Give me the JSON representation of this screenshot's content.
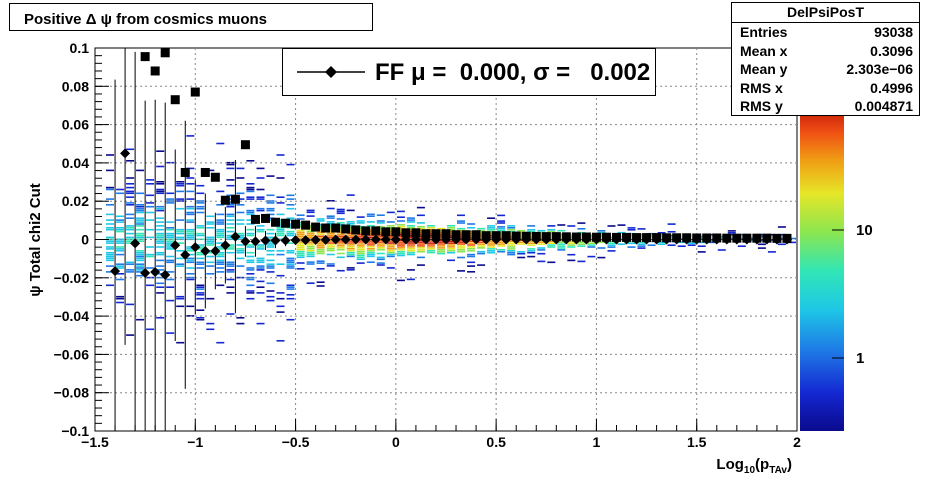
{
  "chart_data": {
    "type": "scatter",
    "title": "Positive Δ ψ from cosmics muons",
    "xlabel_main": "Log",
    "xlabel_sub": "10",
    "xlabel_paren": "(p",
    "xlabel_psub": "TAv",
    "xlabel_close": ")",
    "ylabel": "ψ  Total chi2 Cut",
    "xlim": [
      -1.5,
      2
    ],
    "ylim": [
      -0.1,
      0.1
    ],
    "xticks": [
      "−1.5",
      "−1",
      "−0.5",
      "0",
      "0.5",
      "1",
      "1.5",
      "2"
    ],
    "xtick_values": [
      -1.5,
      -1,
      -0.5,
      0,
      0.5,
      1,
      1.5,
      2
    ],
    "yticks": [
      "−0.1",
      "−0.08",
      "−0.06",
      "−0.04",
      "−0.02",
      "0",
      "0.02",
      "0.04",
      "0.06",
      "0.08",
      "0.1"
    ],
    "ytick_values": [
      -0.1,
      -0.08,
      -0.06,
      -0.04,
      -0.02,
      0,
      0.02,
      0.04,
      0.06,
      0.08,
      0.1
    ],
    "grid": true,
    "colorbar_ticks": [
      "1",
      "10"
    ],
    "legend": {
      "label": "FF μ =  0.000, σ =   0.002"
    },
    "stats": {
      "title": "DelPsiPosT",
      "rows": [
        {
          "key": "Entries",
          "value": "93038"
        },
        {
          "key": "Mean x",
          "value": "0.3096"
        },
        {
          "key": "Mean y",
          "value": "2.303e−06"
        },
        {
          "key": "RMS x",
          "value": "0.4996"
        },
        {
          "key": "RMS y",
          "value": "0.004871"
        }
      ]
    },
    "sigma_points": [
      {
        "x": -1.25,
        "y": 0.0955
      },
      {
        "x": -1.2,
        "y": 0.088
      },
      {
        "x": -1.15,
        "y": 0.0975
      },
      {
        "x": -1.1,
        "y": 0.073
      },
      {
        "x": -1.05,
        "y": 0.035
      },
      {
        "x": -1.0,
        "y": 0.077
      },
      {
        "x": -0.95,
        "y": 0.035
      },
      {
        "x": -0.9,
        "y": 0.0325
      },
      {
        "x": -0.85,
        "y": 0.0205
      },
      {
        "x": -0.8,
        "y": 0.021
      },
      {
        "x": -0.75,
        "y": 0.0495
      },
      {
        "x": -0.7,
        "y": 0.0105
      },
      {
        "x": -0.65,
        "y": 0.011
      },
      {
        "x": -0.6,
        "y": 0.009
      },
      {
        "x": -0.55,
        "y": 0.0085
      },
      {
        "x": -0.5,
        "y": 0.008
      },
      {
        "x": -0.45,
        "y": 0.0075
      },
      {
        "x": -0.4,
        "y": 0.0065
      },
      {
        "x": -0.35,
        "y": 0.006
      },
      {
        "x": -0.3,
        "y": 0.006
      },
      {
        "x": -0.25,
        "y": 0.0055
      },
      {
        "x": -0.2,
        "y": 0.005
      },
      {
        "x": -0.15,
        "y": 0.0045
      },
      {
        "x": -0.1,
        "y": 0.0045
      },
      {
        "x": -0.05,
        "y": 0.004
      },
      {
        "x": 0.0,
        "y": 0.004
      },
      {
        "x": 0.05,
        "y": 0.0035
      },
      {
        "x": 0.1,
        "y": 0.0035
      },
      {
        "x": 0.15,
        "y": 0.003
      },
      {
        "x": 0.2,
        "y": 0.003
      },
      {
        "x": 0.25,
        "y": 0.003
      },
      {
        "x": 0.3,
        "y": 0.0025
      },
      {
        "x": 0.35,
        "y": 0.0025
      },
      {
        "x": 0.4,
        "y": 0.0025
      },
      {
        "x": 0.45,
        "y": 0.002
      },
      {
        "x": 0.5,
        "y": 0.002
      },
      {
        "x": 0.55,
        "y": 0.002
      },
      {
        "x": 0.6,
        "y": 0.0018
      },
      {
        "x": 0.65,
        "y": 0.0017
      },
      {
        "x": 0.7,
        "y": 0.0016
      },
      {
        "x": 0.75,
        "y": 0.0015
      },
      {
        "x": 0.8,
        "y": 0.0015
      },
      {
        "x": 0.85,
        "y": 0.0014
      },
      {
        "x": 0.9,
        "y": 0.0013
      },
      {
        "x": 0.95,
        "y": 0.0013
      },
      {
        "x": 1.0,
        "y": 0.0012
      },
      {
        "x": 1.05,
        "y": 0.0012
      },
      {
        "x": 1.1,
        "y": 0.0011
      },
      {
        "x": 1.15,
        "y": 0.0011
      },
      {
        "x": 1.2,
        "y": 0.001
      },
      {
        "x": 1.25,
        "y": 0.001
      },
      {
        "x": 1.3,
        "y": 0.001
      },
      {
        "x": 1.35,
        "y": 0.0009
      },
      {
        "x": 1.4,
        "y": 0.0009
      },
      {
        "x": 1.45,
        "y": 0.0009
      },
      {
        "x": 1.5,
        "y": 0.0008
      },
      {
        "x": 1.55,
        "y": 0.0008
      },
      {
        "x": 1.6,
        "y": 0.0008
      },
      {
        "x": 1.65,
        "y": 0.0007
      },
      {
        "x": 1.7,
        "y": 0.0007
      },
      {
        "x": 1.75,
        "y": 0.0007
      },
      {
        "x": 1.8,
        "y": 0.0007
      },
      {
        "x": 1.85,
        "y": 0.0007
      },
      {
        "x": 1.9,
        "y": 0.0006
      },
      {
        "x": 1.95,
        "y": 0.0006
      }
    ],
    "mean_points": [
      {
        "x": -1.4,
        "y": -0.0165,
        "err": 0.1
      },
      {
        "x": -1.35,
        "y": 0.045,
        "err": 0.1
      },
      {
        "x": -1.3,
        "y": -0.002,
        "err": 0.1
      },
      {
        "x": -1.25,
        "y": -0.0175,
        "err": 0.09
      },
      {
        "x": -1.2,
        "y": -0.017,
        "err": 0.09
      },
      {
        "x": -1.15,
        "y": -0.0185,
        "err": 0.09
      },
      {
        "x": -1.1,
        "y": -0.003,
        "err": 0.05
      },
      {
        "x": -1.05,
        "y": -0.008,
        "err": 0.07
      },
      {
        "x": -1.0,
        "y": -0.004,
        "err": 0.035
      },
      {
        "x": -0.95,
        "y": -0.006,
        "err": 0.03
      },
      {
        "x": -0.9,
        "y": -0.006,
        "err": 0.02
      },
      {
        "x": -0.85,
        "y": -0.003,
        "err": 0.02
      },
      {
        "x": -0.8,
        "y": 0.0015,
        "err": 0.04
      },
      {
        "x": -0.75,
        "y": -0.001,
        "err": 0.008
      },
      {
        "x": -0.7,
        "y": -0.001,
        "err": 0.008
      },
      {
        "x": -0.65,
        "y": -0.0005,
        "err": 0.005
      },
      {
        "x": -0.6,
        "y": -0.0005,
        "err": 0.004
      },
      {
        "x": -0.55,
        "y": -0.0005,
        "err": 0.003
      },
      {
        "x": -0.5,
        "y": -0.0003,
        "err": 0.002
      },
      {
        "x": -0.45,
        "y": -0.0003,
        "err": 0.002
      },
      {
        "x": -0.4,
        "y": -0.0002,
        "err": 0.001
      },
      {
        "x": -0.35,
        "y": -0.0002,
        "err": 0.001
      },
      {
        "x": -0.3,
        "y": 0.0,
        "err": 0.001
      },
      {
        "x": -0.25,
        "y": 0.0,
        "err": 0.001
      },
      {
        "x": -0.2,
        "y": 0.0,
        "err": 0.001
      },
      {
        "x": -0.15,
        "y": 0.0,
        "err": 0.001
      },
      {
        "x": -0.1,
        "y": 0.0,
        "err": 0
      },
      {
        "x": -0.05,
        "y": 0.0,
        "err": 0
      },
      {
        "x": 0.0,
        "y": 0.0,
        "err": 0
      },
      {
        "x": 0.05,
        "y": 0.0,
        "err": 0
      },
      {
        "x": 0.1,
        "y": 0.0,
        "err": 0
      },
      {
        "x": 0.15,
        "y": 0.0,
        "err": 0
      },
      {
        "x": 0.2,
        "y": 0.0,
        "err": 0
      },
      {
        "x": 0.25,
        "y": 0.0,
        "err": 0
      },
      {
        "x": 0.3,
        "y": 0.0,
        "err": 0
      },
      {
        "x": 0.35,
        "y": 0.0,
        "err": 0
      },
      {
        "x": 0.4,
        "y": 0.0,
        "err": 0
      },
      {
        "x": 0.45,
        "y": 0.0,
        "err": 0
      },
      {
        "x": 0.5,
        "y": 0.0,
        "err": 0
      },
      {
        "x": 0.55,
        "y": 0.0,
        "err": 0
      },
      {
        "x": 0.6,
        "y": 0.0,
        "err": 0
      },
      {
        "x": 0.65,
        "y": 0.0,
        "err": 0
      },
      {
        "x": 0.7,
        "y": 0.0,
        "err": 0
      },
      {
        "x": 0.75,
        "y": 0.0,
        "err": 0
      },
      {
        "x": 0.8,
        "y": 0.0,
        "err": 0
      },
      {
        "x": 0.85,
        "y": 0.0,
        "err": 0
      },
      {
        "x": 0.9,
        "y": 0.0,
        "err": 0
      },
      {
        "x": 0.95,
        "y": 0.0,
        "err": 0
      },
      {
        "x": 1.0,
        "y": 0.0,
        "err": 0
      },
      {
        "x": 1.05,
        "y": 0.0,
        "err": 0
      },
      {
        "x": 1.1,
        "y": 0.0,
        "err": 0
      },
      {
        "x": 1.15,
        "y": 0.0,
        "err": 0
      },
      {
        "x": 1.2,
        "y": 0.0,
        "err": 0
      },
      {
        "x": 1.25,
        "y": 0.0,
        "err": 0
      },
      {
        "x": 1.3,
        "y": 0.0,
        "err": 0
      },
      {
        "x": 1.35,
        "y": 0.0,
        "err": 0
      },
      {
        "x": 1.4,
        "y": 0.0,
        "err": 0
      },
      {
        "x": 1.45,
        "y": 0.0,
        "err": 0
      },
      {
        "x": 1.5,
        "y": 0.0,
        "err": 0
      },
      {
        "x": 1.55,
        "y": 0.0,
        "err": 0
      },
      {
        "x": 1.6,
        "y": 0.0,
        "err": 0
      },
      {
        "x": 1.65,
        "y": 0.0,
        "err": 0
      },
      {
        "x": 1.7,
        "y": 0.0,
        "err": 0
      },
      {
        "x": 1.75,
        "y": 0.0,
        "err": 0
      },
      {
        "x": 1.8,
        "y": 0.0,
        "err": 0
      },
      {
        "x": 1.85,
        "y": 0.0,
        "err": 0
      },
      {
        "x": 1.9,
        "y": 0.0,
        "err": 0
      },
      {
        "x": 1.95,
        "y": 0.0,
        "err": 0
      }
    ],
    "colors": {
      "marker": "#000000",
      "palette": [
        "#0a0a8c",
        "#1428d2",
        "#1e7ae6",
        "#1ec8e6",
        "#32e6b4",
        "#8ce650",
        "#e6e628",
        "#f0a014",
        "#f05014",
        "#c81e0a"
      ]
    }
  }
}
